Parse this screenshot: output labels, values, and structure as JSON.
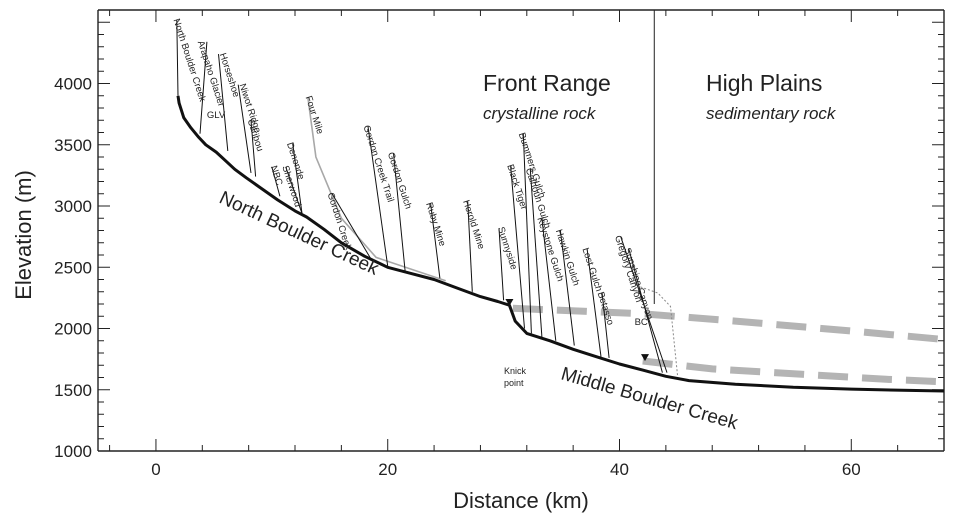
{
  "chart_data": {
    "type": "line",
    "xlabel": "Distance (km)",
    "ylabel": "Elevation (m)",
    "xlim": [
      -5,
      68
    ],
    "ylim": [
      1000,
      4600
    ],
    "xticks": [
      0,
      20,
      40,
      60
    ],
    "yticks": [
      1000,
      1500,
      2000,
      2500,
      3000,
      3500,
      4000
    ],
    "grid": false,
    "colors": {
      "main": "#111111",
      "tributary": "#111111",
      "four_mile": "#a8a8a8",
      "dashed": "#b4b4b4",
      "dotted": "#888888"
    },
    "regions": [
      {
        "title": "Front Range",
        "subtitle": "crystalline rock",
        "x_range": [
          -5,
          43
        ]
      },
      {
        "title": "High Plains",
        "subtitle": "sedimentary rock",
        "x_range": [
          43,
          68
        ]
      }
    ],
    "boundary_x": 43,
    "main_stem": {
      "labels": [
        "North Boulder Creek",
        "Middle Boulder Creek"
      ],
      "x": [
        1.9,
        2.0,
        2.4,
        3.0,
        3.7,
        4.3,
        5.2,
        6.0,
        6.8,
        7.8,
        9.0,
        10.5,
        12.0,
        13.0,
        14.5,
        16.0,
        18.0,
        20.0,
        22.0,
        24.0,
        26.0,
        28.0,
        29.5,
        30.5,
        31.0,
        32.0,
        34.0,
        36.0,
        38.0,
        40.0,
        42.0,
        44.0,
        46.0,
        50.0,
        55.0,
        60.0,
        65.0,
        68.0
      ],
      "y": [
        3900,
        3840,
        3720,
        3640,
        3560,
        3500,
        3440,
        3370,
        3300,
        3230,
        3150,
        3050,
        2960,
        2910,
        2810,
        2700,
        2590,
        2500,
        2450,
        2400,
        2330,
        2260,
        2220,
        2190,
        2060,
        1960,
        1900,
        1830,
        1770,
        1710,
        1660,
        1610,
        1575,
        1545,
        1520,
        1505,
        1495,
        1490
      ]
    },
    "tributaries": [
      {
        "name": "North Boulder Creek",
        "x": [
          1.9,
          1.8
        ],
        "y": [
          3900,
          4520
        ],
        "label_x": 1.5
      },
      {
        "name": "Arapaho Glacier",
        "x": [
          3.8,
          4.4
        ],
        "y": [
          3590,
          4340
        ],
        "label_x": 3.6
      },
      {
        "name": "GLV",
        "x": [],
        "y": [],
        "label_x": 4.4,
        "label_y": 3720
      },
      {
        "name": "Horseshoe",
        "x": [
          6.2,
          5.4
        ],
        "y": [
          3450,
          4240
        ],
        "label_x": 5.5
      },
      {
        "name": "Niwot Ridge",
        "x": [
          8.2,
          7.1
        ],
        "y": [
          3270,
          3990
        ],
        "label_x": 7.2
      },
      {
        "name": "Caribou",
        "x": [
          8.6,
          8.2
        ],
        "y": [
          3240,
          3700
        ],
        "label_x": 7.9
      },
      {
        "name": "NBC",
        "x": [
          10.7,
          10.0
        ],
        "y": [
          3080,
          3320
        ],
        "label_x": 9.9
      },
      {
        "name": "Four Mile",
        "x": [
          25.0,
          19.0,
          16.0,
          13.8,
          13.1
        ],
        "y": [
          2390,
          2580,
          2900,
          3400,
          3890
        ],
        "label_x": 12.9,
        "highlight": true
      },
      {
        "name": "Denonde",
        "x": [
          12.6,
          11.8
        ],
        "y": [
          2940,
          3510
        ],
        "label_x": 11.3
      },
      {
        "name": "Sherwood",
        "x": [
          12.6,
          11.2
        ],
        "y": [
          2940,
          3320
        ],
        "label_x": 10.9
      },
      {
        "name": "Gordon Creek",
        "x": [
          18.6,
          15.2
        ],
        "y": [
          2560,
          3100
        ],
        "label_x": 14.8
      },
      {
        "name": "Gordon Creek Trail",
        "x": [
          20.0,
          18.3
        ],
        "y": [
          2510,
          3650
        ],
        "label_x": 17.9
      },
      {
        "name": "Gordon Gulch",
        "x": [
          21.5,
          20.5
        ],
        "y": [
          2470,
          3430
        ],
        "label_x": 20.0
      },
      {
        "name": "Ruby Mine",
        "x": [
          24.5,
          23.7
        ],
        "y": [
          2410,
          3020
        ],
        "label_x": 23.3
      },
      {
        "name": "Herold Mine",
        "x": [
          27.3,
          26.9
        ],
        "y": [
          2300,
          3040
        ],
        "label_x": 26.5
      },
      {
        "name": "Sunnyside",
        "x": [
          30.0,
          29.6
        ],
        "y": [
          2230,
          2820
        ],
        "label_x": 29.5
      },
      {
        "name": "Black Tiger",
        "x": [
          31.8,
          30.6
        ],
        "y": [
          2000,
          3330
        ],
        "label_x": 30.3
      },
      {
        "name": "Bummers Gulch",
        "x": [
          32.4,
          31.7
        ],
        "y": [
          1960,
          3590
        ],
        "label_x": 31.3
      },
      {
        "name": "Calhoun Gulch",
        "x": [
          33.3,
          32.3
        ],
        "y": [
          1930,
          3300
        ],
        "label_x": 31.9
      },
      {
        "name": "Keystone Gulch",
        "x": [
          34.5,
          33.3
        ],
        "y": [
          1900,
          2900
        ],
        "label_x": 32.9
      },
      {
        "name": "Hawkin Gulch",
        "x": [
          36.1,
          34.9
        ],
        "y": [
          1860,
          2800
        ],
        "label_x": 34.5
      },
      {
        "name": "Lost Gulch",
        "x": [
          38.4,
          37.2
        ],
        "y": [
          1770,
          2650
        ],
        "label_x": 36.8
      },
      {
        "name": "Betasso",
        "x": [
          39.1,
          38.5
        ],
        "y": [
          1760,
          2290
        ],
        "label_x": 38.1
      },
      {
        "name": "Gregory Canyon",
        "x": [
          44.1,
          40.1
        ],
        "y": [
          1640,
          2750
        ],
        "label_x": 39.6
      },
      {
        "name": "Sunshine Canyon",
        "x": [
          43.7,
          40.8
        ],
        "y": [
          1640,
          2650
        ],
        "label_x": 40.4
      },
      {
        "name": "BC",
        "x": [],
        "y": [],
        "label_x": 41.3,
        "label_y": 2030
      }
    ],
    "dashed_profiles": [
      {
        "x": [
          30.8,
          42,
          50,
          60,
          68
        ],
        "y": [
          2165,
          2120,
          2060,
          1980,
          1910
        ]
      },
      {
        "x": [
          42,
          48,
          56,
          63,
          68
        ],
        "y": [
          1735,
          1670,
          1625,
          1585,
          1565
        ]
      }
    ],
    "dotted_profile": {
      "x": [
        41.8,
        43.3,
        44.4,
        44.7,
        45.0
      ],
      "y": [
        2340,
        2290,
        2180,
        1900,
        1620
      ]
    },
    "annotations": [
      {
        "text": "Knick",
        "x": 31.8,
        "y": 1870
      },
      {
        "text": "point",
        "x": 31.8,
        "y": 1760
      }
    ],
    "markers": [
      {
        "shape": "triangle-down",
        "x": 30.5,
        "y": 2200
      },
      {
        "shape": "triangle-down",
        "x": 42.2,
        "y": 1750
      }
    ]
  }
}
